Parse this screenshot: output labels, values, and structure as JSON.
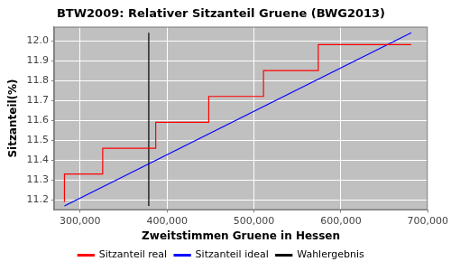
{
  "chart_data": {
    "type": "line",
    "title": "BTW2009: Relativer Sitzanteil Gruene (BWG2013)",
    "x_label": "Zweitstimmen Gruene in Hessen",
    "y_label": "Sitzanteil(%)",
    "series": [
      {
        "name": "Sitzanteil real",
        "color": "#ff0000",
        "line_style": "step",
        "x": [
          282000,
          326000,
          387000,
          448000,
          511000,
          574000,
          635000,
          681000
        ],
        "values": [
          11.19,
          11.33,
          11.46,
          11.59,
          11.72,
          11.85,
          11.98,
          11.98
        ]
      },
      {
        "name": "Sitzanteil ideal",
        "color": "#0000ff",
        "line_style": "solid",
        "x": [
          282000,
          681000
        ],
        "values": [
          11.17,
          12.04
        ]
      },
      {
        "name": "Wahlergebnis",
        "color": "#000000",
        "line_style": "solid",
        "x": [
          379000,
          379000
        ],
        "values": [
          11.17,
          12.04
        ]
      }
    ],
    "xlim": [
      270000,
      700000
    ],
    "xticks": [
      {
        "value": 300000,
        "label": "300,000"
      },
      {
        "value": 400000,
        "label": "400,000"
      },
      {
        "value": 500000,
        "label": "500,000"
      },
      {
        "value": 600000,
        "label": "600,000"
      },
      {
        "value": 700000,
        "label": "700,000"
      }
    ],
    "ylim": [
      11.15,
      12.07
    ],
    "yticks": [
      11.2,
      11.3,
      11.4,
      11.5,
      11.6,
      11.7,
      11.8,
      11.9,
      {
        "value": 12.0,
        "label": "12.0"
      }
    ],
    "grid": true,
    "legend": "bottom"
  }
}
